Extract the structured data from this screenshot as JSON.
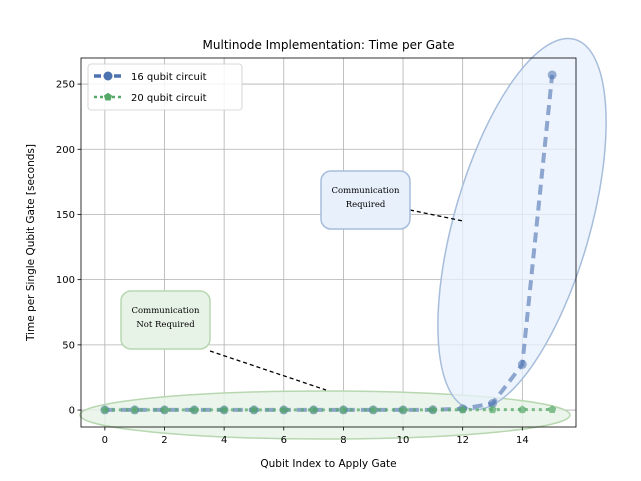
{
  "chart_data": {
    "type": "line",
    "title": "Multinode Implementation: Time per Gate",
    "xlabel": "Qubit Index to Apply Gate",
    "ylabel": "Time per Single Qubit Gate [seconds]",
    "xlim": [
      -0.8,
      15.8
    ],
    "ylim": [
      -13,
      270
    ],
    "xticks": [
      0,
      2,
      4,
      6,
      8,
      10,
      12,
      14
    ],
    "yticks": [
      0,
      50,
      100,
      150,
      200,
      250
    ],
    "grid": true,
    "legend_position": "top-left",
    "series": [
      {
        "name": "16 qubit circuit",
        "color": "#4c72b0",
        "marker": "circle",
        "line_style": "dashed",
        "x": [
          0,
          1,
          2,
          3,
          4,
          5,
          6,
          7,
          8,
          9,
          10,
          11,
          12,
          13,
          14,
          15
        ],
        "y": [
          0.1,
          0.1,
          0.1,
          0.1,
          0.1,
          0.1,
          0.1,
          0.1,
          0.1,
          0.1,
          0.1,
          0.2,
          1,
          5,
          35,
          257
        ]
      },
      {
        "name": "20 qubit circuit",
        "color": "#55a868",
        "marker": "pentagon",
        "line_style": "dotted",
        "x": [
          0,
          1,
          2,
          3,
          4,
          5,
          6,
          7,
          8,
          9,
          10,
          11,
          12,
          13,
          14,
          15
        ],
        "y": [
          0.1,
          0.1,
          0.1,
          0.1,
          0.1,
          0.1,
          0.1,
          0.1,
          0.1,
          0.1,
          0.1,
          0.1,
          0.2,
          0.3,
          0.3,
          0.4
        ]
      }
    ],
    "annotations": [
      {
        "lines": [
          "Communication",
          "Required"
        ],
        "color": "#e8f0fc",
        "border": "#a6bddb"
      },
      {
        "lines": [
          "Communication",
          "Not Required"
        ],
        "color": "#e8f3e8",
        "border": "#b7d7b0"
      }
    ]
  }
}
